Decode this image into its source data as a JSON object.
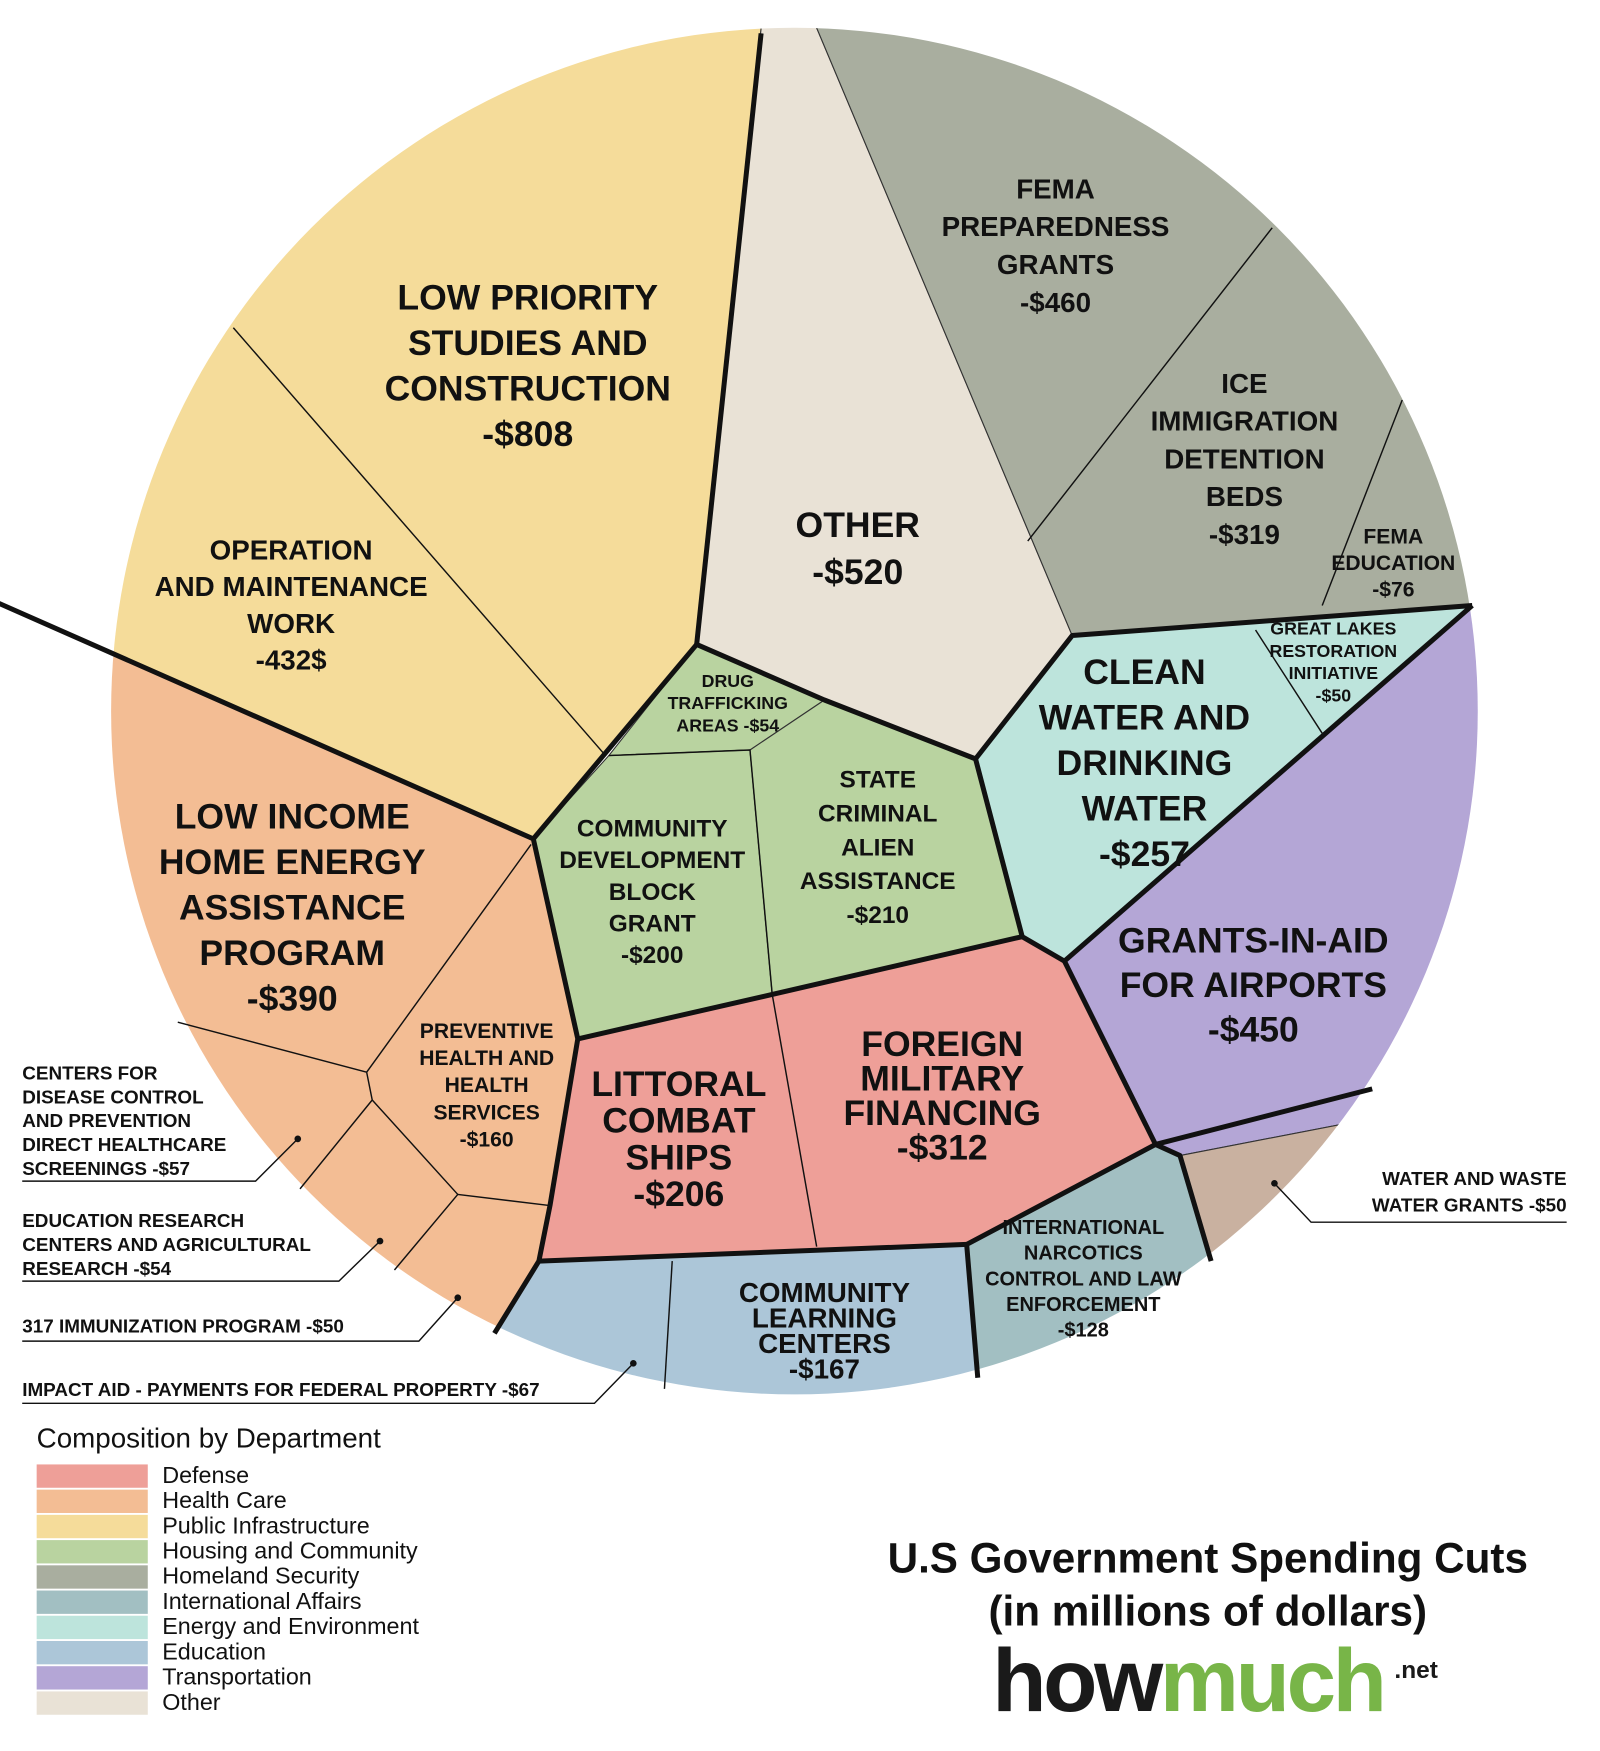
{
  "cells": [
    {
      "lines": [
        "LOW PRIORITY",
        "STUDIES AND",
        "CONSTRUCTION",
        "-$808"
      ],
      "color": "#f5dc9a"
    },
    {
      "lines": [
        "OPERATION",
        "AND MAINTENANCE",
        "WORK",
        "-432$"
      ]
    },
    {
      "lines": [
        "OTHER",
        "-$520"
      ],
      "color": "#e9e2d6"
    },
    {
      "lines": [
        "FEMA",
        "PREPAREDNESS",
        "GRANTS",
        "-$460"
      ],
      "color": "#a9ae9f"
    },
    {
      "lines": [
        "ICE",
        "IMMIGRATION",
        "DETENTION",
        "BEDS",
        "-$319"
      ]
    },
    {
      "lines": [
        "FEMA",
        "EDUCATION",
        "-$76"
      ]
    },
    {
      "lines": [
        "GREAT LAKES",
        "RESTORATION",
        "INITIATIVE",
        "-$50"
      ]
    },
    {
      "lines": [
        "CLEAN",
        "WATER AND",
        "DRINKING",
        "WATER",
        "-$257"
      ],
      "color": "#bde4dc"
    },
    {
      "lines": [
        "DRUG",
        "TRAFFICKING",
        "AREAS -$54"
      ],
      "color": "#b9d3a0"
    },
    {
      "lines": [
        "COMMUNITY",
        "DEVELOPMENT",
        "BLOCK",
        "GRANT",
        "-$200"
      ],
      "color": "#b9d3a0"
    },
    {
      "lines": [
        "STATE",
        "CRIMINAL",
        "ALIEN",
        "ASSISTANCE",
        "-$210"
      ],
      "color": "#b9d3a0"
    },
    {
      "lines": [
        "LOW INCOME",
        "HOME ENERGY",
        "ASSISTANCE",
        "PROGRAM",
        "-$390"
      ],
      "color": "#f3bd94"
    },
    {
      "lines": [
        "PREVENTIVE",
        "HEALTH AND",
        "HEALTH",
        "SERVICES",
        "-$160"
      ]
    },
    {
      "lines": [
        "LITTORAL",
        "COMBAT",
        "SHIPS",
        "-$206"
      ],
      "color": "#ee9f98"
    },
    {
      "lines": [
        "FOREIGN",
        "MILITARY",
        "FINANCING",
        "-$312"
      ]
    },
    {
      "lines": [
        "GRANTS-IN-AID",
        "FOR AIRPORTS",
        "-$450"
      ],
      "color": "#b4a6d6"
    },
    {
      "lines": [
        "INTERNATIONAL",
        "NARCOTICS",
        "CONTROL AND LAW",
        "ENFORCEMENT",
        "-$128"
      ],
      "color": "#a2bfc2"
    },
    {
      "lines": [
        "COMMUNITY",
        "LEARNING",
        "CENTERS",
        "-$167"
      ],
      "color": "#acc6d8"
    }
  ],
  "callouts": [
    {
      "lines": [
        "CENTERS FOR",
        "DISEASE CONTROL",
        "AND PREVENTION",
        "DIRECT HEALTHCARE",
        "SCREENINGS -$57"
      ]
    },
    {
      "lines": [
        "EDUCATION RESEARCH",
        "CENTERS AND AGRICULTURAL",
        "RESEARCH -$54"
      ]
    },
    {
      "lines": [
        "317 IMMUNIZATION PROGRAM -$50"
      ]
    },
    {
      "lines": [
        "IMPACT AID - PAYMENTS FOR FEDERAL PROPERTY -$67"
      ]
    },
    {
      "lines": [
        "WATER AND WASTE",
        "WATER GRANTS -$50"
      ],
      "color": "#c9b1a0"
    }
  ],
  "legend": {
    "title": "Composition by Department",
    "items": [
      {
        "name": "Defense",
        "color": "#ee9f98"
      },
      {
        "name": "Health Care",
        "color": "#f3bd94"
      },
      {
        "name": "Public Infrastructure",
        "color": "#f5dc9a"
      },
      {
        "name": "Housing and Community",
        "color": "#b9d3a0"
      },
      {
        "name": "Homeland Security",
        "color": "#a9ae9f"
      },
      {
        "name": "International Affairs",
        "color": "#a2bfc2"
      },
      {
        "name": "Energy and Environment",
        "color": "#bde4dc"
      },
      {
        "name": "Education",
        "color": "#acc6d8"
      },
      {
        "name": "Transportation",
        "color": "#b4a6d6"
      },
      {
        "name": "Other",
        "color": "#e9e2d6"
      }
    ]
  },
  "title": {
    "lines": [
      "U.S Government Spending Cuts",
      "(in millions of dollars)"
    ]
  },
  "logo": {
    "how": "how",
    "much": "much",
    "suffix": ".net"
  }
}
